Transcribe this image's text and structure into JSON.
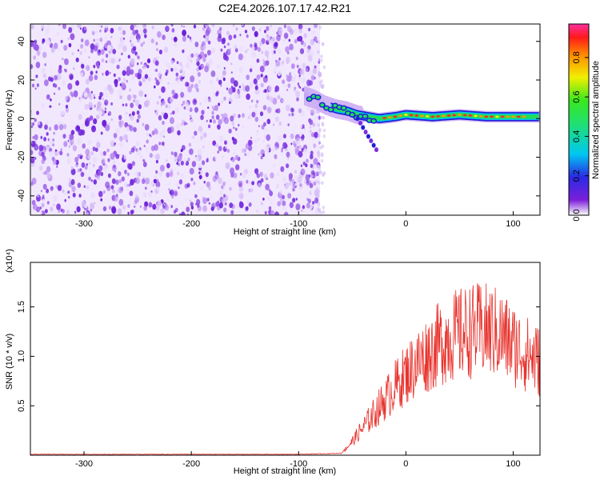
{
  "title": "C2E4.2026.107.17.42.R21",
  "chart_data": [
    {
      "type": "heatmap",
      "name": "spectrogram",
      "xlabel": "Height of straight line (km)",
      "ylabel": "Frequency (Hz)",
      "xlim": [
        -350,
        125
      ],
      "ylim": [
        -50,
        49
      ],
      "xticks": [
        -300,
        -200,
        -100,
        0,
        100
      ],
      "yticks": [
        -40,
        -20,
        0,
        20,
        40
      ],
      "noise_region_x": [
        -350,
        -80
      ],
      "signal_trace": [
        {
          "x": -95,
          "freq": 12
        },
        {
          "x": -85,
          "freq": 10
        },
        {
          "x": -75,
          "freq": 7
        },
        {
          "x": -65,
          "freq": 5
        },
        {
          "x": -55,
          "freq": 4
        },
        {
          "x": -45,
          "freq": 2
        },
        {
          "x": -35,
          "freq": 1
        },
        {
          "x": -25,
          "freq": 0
        },
        {
          "x": -10,
          "freq": 1
        },
        {
          "x": 0,
          "freq": 2
        },
        {
          "x": 25,
          "freq": 1
        },
        {
          "x": 50,
          "freq": 2
        },
        {
          "x": 75,
          "freq": 1
        },
        {
          "x": 100,
          "freq": 1
        },
        {
          "x": 125,
          "freq": 1
        }
      ],
      "colorbar": {
        "label": "Normalized spectral amplitude",
        "ticks": [
          "0.0",
          "0.2",
          "0.4",
          "0.6",
          "0.8"
        ],
        "range": [
          0,
          0.97
        ]
      }
    },
    {
      "type": "line",
      "name": "snr",
      "xlabel": "Height of straight line (km)",
      "ylabel": "SNR (10 * v/v)",
      "scale_label": "(x10⁴)",
      "xlim": [
        -350,
        125
      ],
      "ylim": [
        0,
        1.95
      ],
      "xticks": [
        -300,
        -200,
        -100,
        0,
        100
      ],
      "yticks": [
        "0.5",
        "1.0",
        "1.5"
      ],
      "color": "#e8322c",
      "series": {
        "x": [
          -350,
          -300,
          -200,
          -100,
          -60,
          -50,
          -40,
          -30,
          -20,
          -10,
          0,
          10,
          20,
          30,
          40,
          50,
          60,
          70,
          80,
          90,
          100,
          110,
          125
        ],
        "values": [
          0.01,
          0.01,
          0.01,
          0.01,
          0.02,
          0.15,
          0.3,
          0.45,
          0.6,
          0.75,
          0.88,
          1.0,
          1.1,
          1.2,
          1.28,
          1.32,
          1.35,
          1.36,
          1.35,
          1.3,
          1.2,
          1.12,
          1.02
        ]
      }
    }
  ]
}
